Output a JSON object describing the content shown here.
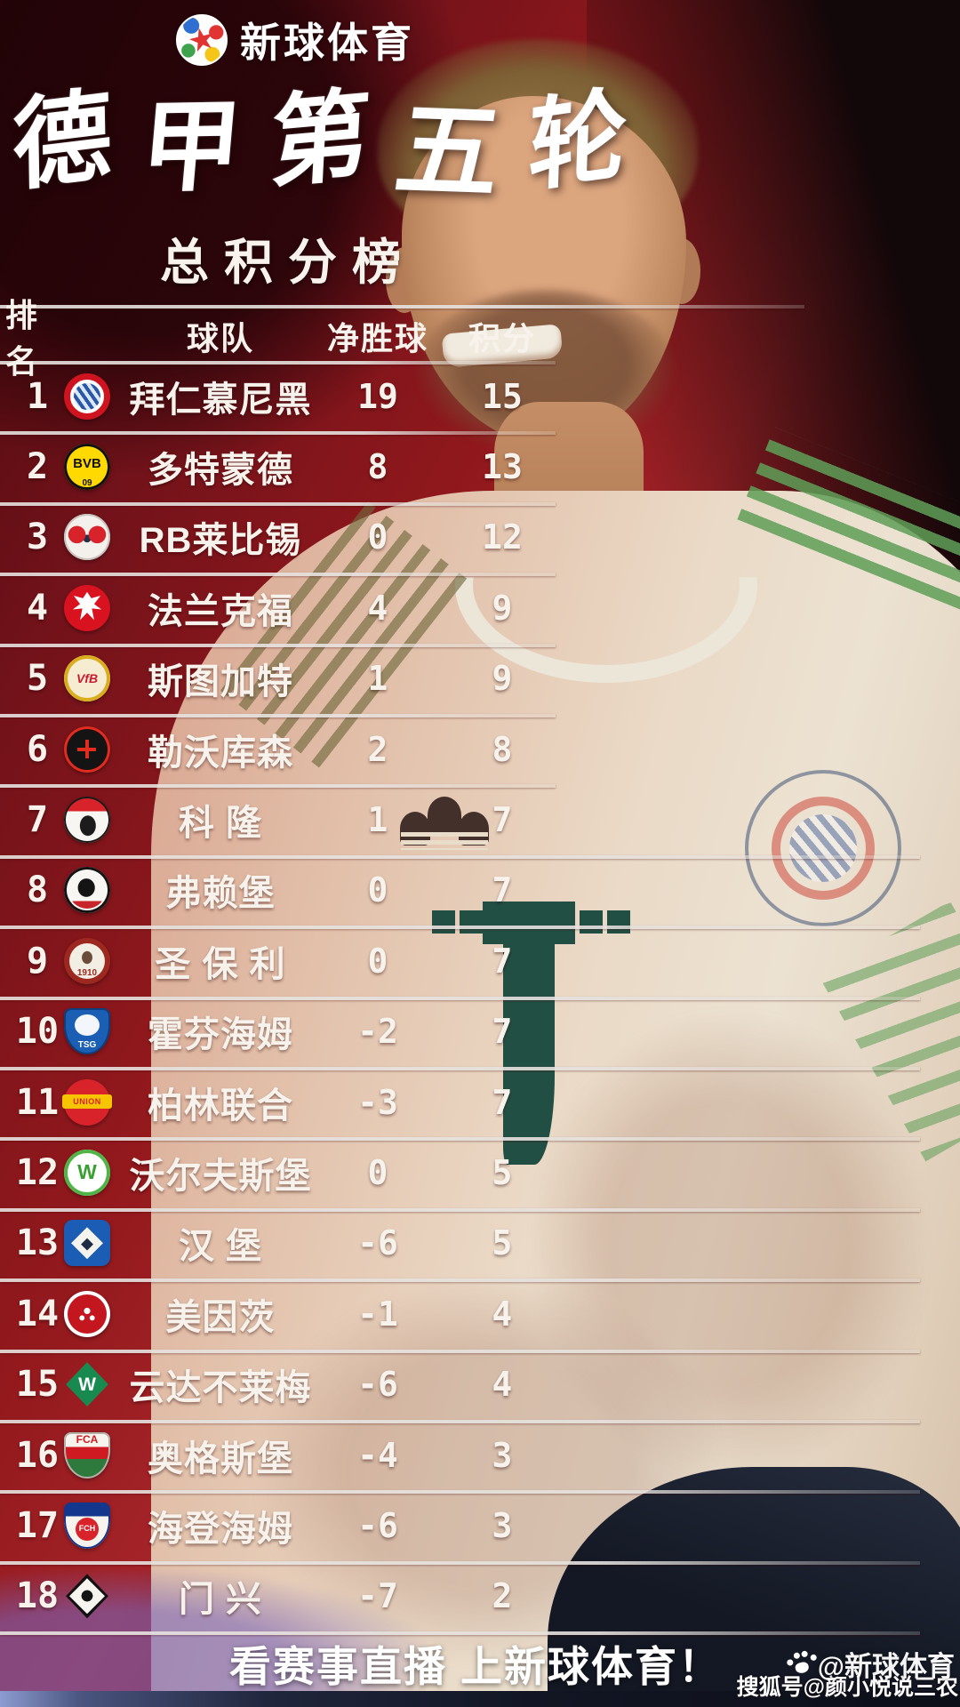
{
  "brand": {
    "name": "新球体育"
  },
  "header": {
    "title": "德甲第五轮",
    "subtitle": "总积分榜"
  },
  "table": {
    "columns": {
      "rank": "排名",
      "team": "球队",
      "goal_diff": "净胜球",
      "points": "积分"
    },
    "rows": [
      {
        "rank": "1",
        "team": "拜仁慕尼黑",
        "goal_diff": "19",
        "points": "15",
        "badge": "bayern",
        "badge_label": "",
        "badge_sub": ""
      },
      {
        "rank": "2",
        "team": "多特蒙德",
        "goal_diff": "8",
        "points": "13",
        "badge": "bvb",
        "badge_label": "BVB",
        "badge_sub": "09"
      },
      {
        "rank": "3",
        "team": "RB莱比锡",
        "goal_diff": "0",
        "points": "12",
        "badge": "leipzig",
        "badge_label": "",
        "badge_sub": ""
      },
      {
        "rank": "4",
        "team": "法兰克福",
        "goal_diff": "4",
        "points": "9",
        "badge": "frankfurt",
        "badge_label": "",
        "badge_sub": ""
      },
      {
        "rank": "5",
        "team": "斯图加特",
        "goal_diff": "1",
        "points": "9",
        "badge": "stuttgart",
        "badge_label": "VfB",
        "badge_sub": ""
      },
      {
        "rank": "6",
        "team": "勒沃库森",
        "goal_diff": "2",
        "points": "8",
        "badge": "leverkusen",
        "badge_label": "",
        "badge_sub": ""
      },
      {
        "rank": "7",
        "team": "科 隆",
        "goal_diff": "1",
        "points": "7",
        "badge": "koln",
        "badge_label": "",
        "badge_sub": ""
      },
      {
        "rank": "8",
        "team": "弗赖堡",
        "goal_diff": "0",
        "points": "7",
        "badge": "freiburg",
        "badge_label": "",
        "badge_sub": ""
      },
      {
        "rank": "9",
        "team": "圣 保 利",
        "goal_diff": "0",
        "points": "7",
        "badge": "stpauli",
        "badge_label": "1910",
        "badge_sub": ""
      },
      {
        "rank": "10",
        "team": "霍芬海姆",
        "goal_diff": "-2",
        "points": "7",
        "badge": "hoffenheim",
        "badge_label": "TSG",
        "badge_sub": ""
      },
      {
        "rank": "11",
        "team": "柏林联合",
        "goal_diff": "-3",
        "points": "7",
        "badge": "union",
        "badge_label": "UNION",
        "badge_sub": ""
      },
      {
        "rank": "12",
        "team": "沃尔夫斯堡",
        "goal_diff": "0",
        "points": "5",
        "badge": "wolfsburg",
        "badge_label": "W",
        "badge_sub": ""
      },
      {
        "rank": "13",
        "team": "汉 堡",
        "goal_diff": "-6",
        "points": "5",
        "badge": "hsv",
        "badge_label": "◆",
        "badge_sub": ""
      },
      {
        "rank": "14",
        "team": "美因茨",
        "goal_diff": "-1",
        "points": "4",
        "badge": "mainz",
        "badge_label": "",
        "badge_sub": ""
      },
      {
        "rank": "15",
        "team": "云达不莱梅",
        "goal_diff": "-6",
        "points": "4",
        "badge": "bremen",
        "badge_label": "W",
        "badge_sub": ""
      },
      {
        "rank": "16",
        "team": "奥格斯堡",
        "goal_diff": "-4",
        "points": "3",
        "badge": "augsburg",
        "badge_label": "FCA",
        "badge_sub": ""
      },
      {
        "rank": "17",
        "team": "海登海姆",
        "goal_diff": "-6",
        "points": "3",
        "badge": "heidenheim",
        "badge_label": "FCH",
        "badge_sub": ""
      },
      {
        "rank": "18",
        "team": "门 兴",
        "goal_diff": "-7",
        "points": "2",
        "badge": "gladbach",
        "badge_label": "",
        "badge_sub": ""
      }
    ]
  },
  "footer": {
    "slogan": "看赛事直播 上新球体育！"
  },
  "watermarks": {
    "primary": "@新球体育",
    "secondary": "搜狐号@颜小悦说三农"
  },
  "colors": {
    "background_red": "#8f181c",
    "telekom_green": "#224f44",
    "line": "#e4dedc",
    "text": "#f7f3ec"
  }
}
